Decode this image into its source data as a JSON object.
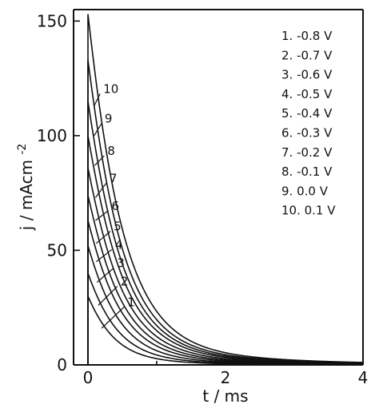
{
  "chart_data": {
    "type": "line",
    "xlabel": "t / ms",
    "ylabel_main": "j / mAcm",
    "ylabel_sup": "-2",
    "xlim": [
      0,
      4
    ],
    "ylim": [
      0,
      155
    ],
    "xticks": [
      {
        "value": 0,
        "label": "0"
      },
      {
        "value": 2,
        "label": "2"
      },
      {
        "value": 4,
        "label": "4"
      }
    ],
    "yticks": [
      {
        "value": 0,
        "label": "0"
      },
      {
        "value": 50,
        "label": "50"
      },
      {
        "value": 100,
        "label": "100"
      },
      {
        "value": 150,
        "label": "150"
      }
    ],
    "minor_xticks": [
      1,
      3
    ],
    "grid": false,
    "legend_position": "top-right",
    "legend": [
      "1.  -0.8 V",
      "2.  -0.7 V",
      "3.  -0.6 V",
      "4.  -0.5 V",
      "5.  -0.4 V",
      "6.  -0.3 V",
      "7.  -0.2 V",
      "8.  -0.1 V",
      "9.   0.0 V",
      "10.  0.1 V"
    ],
    "series": [
      {
        "label": "1",
        "peak": 30,
        "tau": 0.35,
        "label_point": [
          0.2,
          16
        ],
        "label_text_at": [
          0.55,
          26
        ]
      },
      {
        "label": "2",
        "peak": 40,
        "tau": 0.38,
        "label_point": [
          0.15,
          26
        ],
        "label_text_at": [
          0.45,
          35
        ]
      },
      {
        "label": "3",
        "peak": 52,
        "tau": 0.4,
        "label_point": [
          0.13,
          36
        ],
        "label_text_at": [
          0.4,
          43
        ]
      },
      {
        "label": "4",
        "peak": 63,
        "tau": 0.42,
        "label_point": [
          0.12,
          45
        ],
        "label_text_at": [
          0.37,
          51
        ]
      },
      {
        "label": "5",
        "peak": 74,
        "tau": 0.43,
        "label_point": [
          0.12,
          53
        ],
        "label_text_at": [
          0.35,
          59
        ]
      },
      {
        "label": "6",
        "peak": 86,
        "tau": 0.44,
        "label_point": [
          0.11,
          63
        ],
        "label_text_at": [
          0.32,
          68
        ]
      },
      {
        "label": "7",
        "peak": 100,
        "tau": 0.45,
        "label_point": [
          0.11,
          73
        ],
        "label_text_at": [
          0.29,
          80
        ]
      },
      {
        "label": "8",
        "peak": 115,
        "tau": 0.45,
        "label_point": [
          0.1,
          87
        ],
        "label_text_at": [
          0.26,
          92
        ]
      },
      {
        "label": "9",
        "peak": 133,
        "tau": 0.45,
        "label_point": [
          0.09,
          100
        ],
        "label_text_at": [
          0.22,
          106
        ]
      },
      {
        "label": "10",
        "peak": 153,
        "tau": 0.46,
        "label_point": [
          0.09,
          113
        ],
        "label_text_at": [
          0.2,
          119
        ]
      }
    ]
  }
}
